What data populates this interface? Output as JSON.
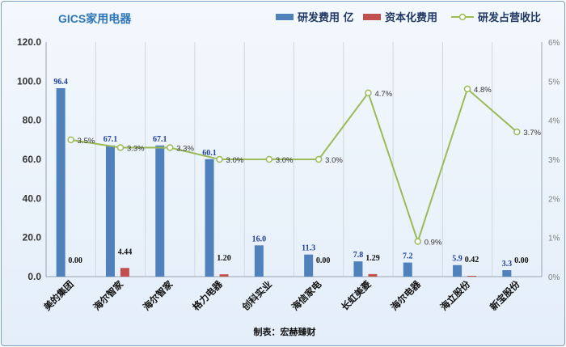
{
  "chart_data": {
    "type": "bar",
    "title": "GICS家用电器",
    "credit": "制表：宏赫臻财",
    "categories": [
      "美的集团",
      "海尔智家",
      "海尔智家",
      "格力电器",
      "创科实业",
      "海信家电",
      "长虹美菱",
      "海尔电器",
      "海立股份",
      "新宝股份"
    ],
    "series": [
      {
        "name": "研发费用 亿",
        "kind": "bar",
        "axis": "left",
        "color": "#4f81bd",
        "values": [
          96.4,
          67.1,
          67.1,
          60.1,
          16.0,
          11.3,
          7.8,
          7.2,
          5.9,
          3.3
        ],
        "labels": [
          "96.4",
          "67.1",
          "67.1",
          "60.1",
          "16.0",
          "11.3",
          "7.8",
          "7.2",
          "5.9",
          "3.3"
        ]
      },
      {
        "name": "资本化费用",
        "kind": "bar",
        "axis": "left",
        "color": "#c0504d",
        "values": [
          0.0,
          4.44,
          null,
          1.2,
          null,
          0.0,
          1.29,
          null,
          0.42,
          0.0
        ],
        "labels": [
          "0.00",
          "4.44",
          "",
          "1.20",
          "",
          "0.00",
          "1.29",
          "",
          "0.42",
          "0.00"
        ]
      },
      {
        "name": "研发占营收比",
        "kind": "line",
        "axis": "right",
        "color": "#9bbb59",
        "values": [
          3.5,
          3.3,
          3.3,
          3.0,
          3.0,
          3.0,
          4.7,
          0.9,
          4.8,
          3.7
        ],
        "labels": [
          "3.5%",
          "3.3%",
          "3.3%",
          "3.0%",
          "3.0%",
          "3.0%",
          "4.7%",
          "0.9%",
          "4.8%",
          "3.7%"
        ]
      }
    ],
    "y_left": {
      "min": 0,
      "max": 120,
      "step": 20,
      "tick_labels": [
        "0.0",
        "20.0",
        "40.0",
        "60.0",
        "80.0",
        "100.0",
        "120.0"
      ]
    },
    "y_right": {
      "min": 0,
      "max": 6,
      "step": 1,
      "tick_labels": [
        "0%",
        "1%",
        "2%",
        "3%",
        "4%",
        "5%",
        "6%"
      ]
    },
    "grid": "vertical",
    "legend_position": "top-right"
  }
}
